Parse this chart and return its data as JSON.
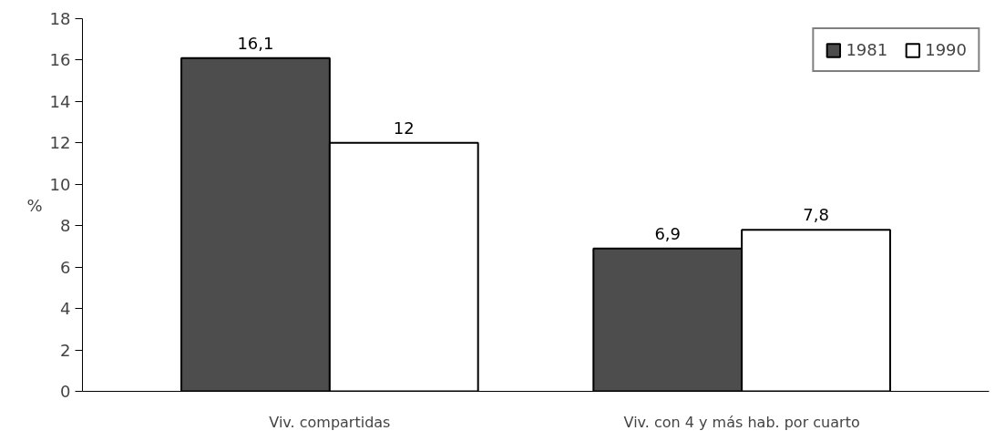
{
  "chart_data": {
    "type": "bar",
    "ylabel": "%",
    "categories": [
      "Viv. compartidas",
      "Viv. con 4 y más hab. por cuarto"
    ],
    "series": [
      {
        "name": "1981",
        "color": "#4d4d4d",
        "values": [
          16.1,
          6.9
        ],
        "value_labels": [
          "16,1",
          "6,9"
        ]
      },
      {
        "name": "1990",
        "color": "#ffffff",
        "values": [
          12,
          7.8
        ],
        "value_labels": [
          "12",
          "7,8"
        ]
      }
    ],
    "ylim": [
      0,
      18
    ],
    "yticks": [
      0,
      2,
      4,
      6,
      8,
      10,
      12,
      14,
      16,
      18
    ],
    "grid": false,
    "legend": "top right"
  }
}
